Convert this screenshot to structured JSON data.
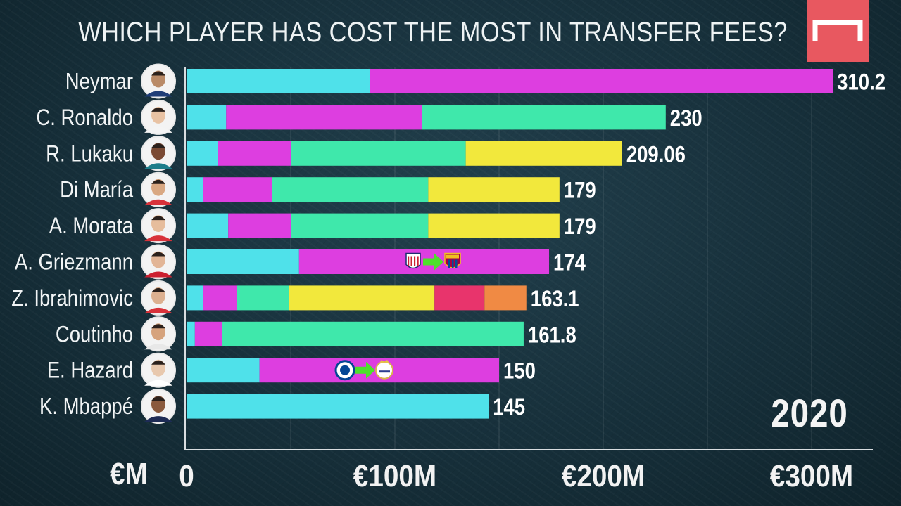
{
  "title": "WHICH PLAYER HAS COST THE MOST IN TRANSFER FEES?",
  "year": "2020",
  "axis_unit": "€M",
  "colors": [
    "#4fe1ea",
    "#dd3ee0",
    "#3fe8ab",
    "#f2e83c",
    "#e8346c",
    "#f08a44"
  ],
  "logo": {
    "color": "#e85860",
    "icon": "goal-logo-icon"
  },
  "chart_data": {
    "type": "bar",
    "orientation": "horizontal",
    "stacked": true,
    "xlim": [
      0,
      330
    ],
    "xticks": [
      0,
      100,
      200,
      300
    ],
    "xtick_labels": [
      "0",
      "€100M",
      "€200M",
      "€300M"
    ],
    "categories": [
      "Neymar",
      "C. Ronaldo",
      "R. Lukaku",
      "Di María",
      "A. Morata",
      "A. Griezmann",
      "Z. Ibrahimovic",
      "Coutinho",
      "E. Hazard",
      "K. Mbappé"
    ],
    "totals": [
      "310.2",
      "230",
      "209.06",
      "179",
      "179",
      "174",
      "163.1",
      "161.8",
      "150",
      "145"
    ],
    "segments": [
      [
        88,
        222.2
      ],
      [
        19,
        94,
        117
      ],
      [
        15,
        35,
        84,
        75.06
      ],
      [
        8,
        33,
        75,
        63
      ],
      [
        20,
        30,
        66,
        63
      ],
      [
        54,
        120
      ],
      [
        8,
        16,
        25,
        70,
        24,
        20.1
      ],
      [
        4,
        13,
        144.8
      ],
      [
        35,
        115
      ],
      [
        145
      ]
    ],
    "transfer_badges": [
      {
        "player": "A. Griezmann",
        "from": "atletico-crest-icon",
        "to": "barcelona-crest-icon"
      },
      {
        "player": "E. Hazard",
        "from": "chelsea-crest-icon",
        "to": "real-madrid-crest-icon"
      }
    ]
  }
}
